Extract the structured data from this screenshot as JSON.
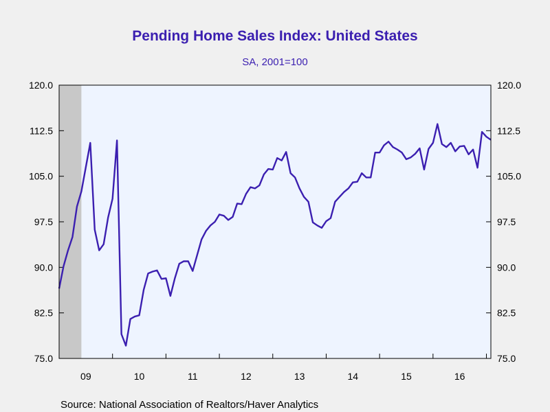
{
  "chart_data": {
    "type": "line",
    "title": "Pending Home Sales Index: United States",
    "subtitle": "SA, 2001=100",
    "source": "Source:  National Association of Realtors/Haver Analytics",
    "ylim": [
      75.0,
      120.0
    ],
    "y_ticks": [
      "120.0",
      "112.5",
      "105.0",
      "97.5",
      "90.0",
      "82.5",
      "75.0"
    ],
    "y_tick_values": [
      120.0,
      112.5,
      105.0,
      97.5,
      90.0,
      82.5,
      75.0
    ],
    "x_ticks": [
      "09",
      "10",
      "11",
      "12",
      "13",
      "14",
      "15",
      "16"
    ],
    "x_range": [
      "2009-01",
      "2017-02"
    ],
    "recession_shading": [
      "2009-01",
      "2009-06"
    ],
    "grid": false,
    "colors": {
      "line": "#3b1fb0",
      "plot_bg": "#eef4ff",
      "recession": "#c8c8c8",
      "text_accent": "#3b1fb0"
    },
    "series": [
      {
        "x": [
          "2009-01",
          "2009-02",
          "2009-03",
          "2009-04",
          "2009-05",
          "2009-06",
          "2009-07",
          "2009-08",
          "2009-09",
          "2009-10",
          "2009-11",
          "2009-12",
          "2010-01",
          "2010-02",
          "2010-03",
          "2010-04",
          "2010-05",
          "2010-06",
          "2010-07",
          "2010-08",
          "2010-09",
          "2010-10",
          "2010-11",
          "2010-12",
          "2011-01",
          "2011-02",
          "2011-03",
          "2011-04",
          "2011-05",
          "2011-06",
          "2011-07",
          "2011-08",
          "2011-09",
          "2011-10",
          "2011-11",
          "2011-12",
          "2012-01",
          "2012-02",
          "2012-03",
          "2012-04",
          "2012-05",
          "2012-06",
          "2012-07",
          "2012-08",
          "2012-09",
          "2012-10",
          "2012-11",
          "2012-12",
          "2013-01",
          "2013-02",
          "2013-03",
          "2013-04",
          "2013-05",
          "2013-06",
          "2013-07",
          "2013-08",
          "2013-09",
          "2013-10",
          "2013-11",
          "2013-12",
          "2014-01",
          "2014-02",
          "2014-03",
          "2014-04",
          "2014-05",
          "2014-06",
          "2014-07",
          "2014-08",
          "2014-09",
          "2014-10",
          "2014-11",
          "2014-12",
          "2015-01",
          "2015-02",
          "2015-03",
          "2015-04",
          "2015-05",
          "2015-06",
          "2015-07",
          "2015-08",
          "2015-09",
          "2015-10",
          "2015-11",
          "2015-12",
          "2016-01",
          "2016-02",
          "2016-03",
          "2016-04",
          "2016-05",
          "2016-06",
          "2016-07",
          "2016-08",
          "2016-09",
          "2016-10",
          "2016-11",
          "2016-12",
          "2017-01",
          "2017-02"
        ],
        "values": [
          86.5,
          90.2,
          92.8,
          95.0,
          100.0,
          102.5,
          106.5,
          110.5,
          96.2,
          92.8,
          93.8,
          98.2,
          101.3,
          110.9,
          79.0,
          77.1,
          81.5,
          81.9,
          82.1,
          86.3,
          89.0,
          89.3,
          89.5,
          88.1,
          88.2,
          85.3,
          88.2,
          90.6,
          91.0,
          91.0,
          89.4,
          92.0,
          94.6,
          96.0,
          96.9,
          97.5,
          98.7,
          98.5,
          97.8,
          98.3,
          100.5,
          100.4,
          102.1,
          103.2,
          103.0,
          103.5,
          105.3,
          106.2,
          106.1,
          108.0,
          107.6,
          109.0,
          105.5,
          104.8,
          103.0,
          101.6,
          100.8,
          97.4,
          96.9,
          96.5,
          97.6,
          98.1,
          100.8,
          101.6,
          102.4,
          103.0,
          104.0,
          104.1,
          105.5,
          104.8,
          104.8,
          108.9,
          108.9,
          110.1,
          110.7,
          109.8,
          109.4,
          108.9,
          107.8,
          108.1,
          108.7,
          109.6,
          106.1,
          109.5,
          110.5,
          113.6,
          110.3,
          109.8,
          110.5,
          109.1,
          109.9,
          110.0,
          108.6,
          109.4,
          106.4,
          112.3,
          111.5,
          111.0
        ]
      }
    ]
  }
}
